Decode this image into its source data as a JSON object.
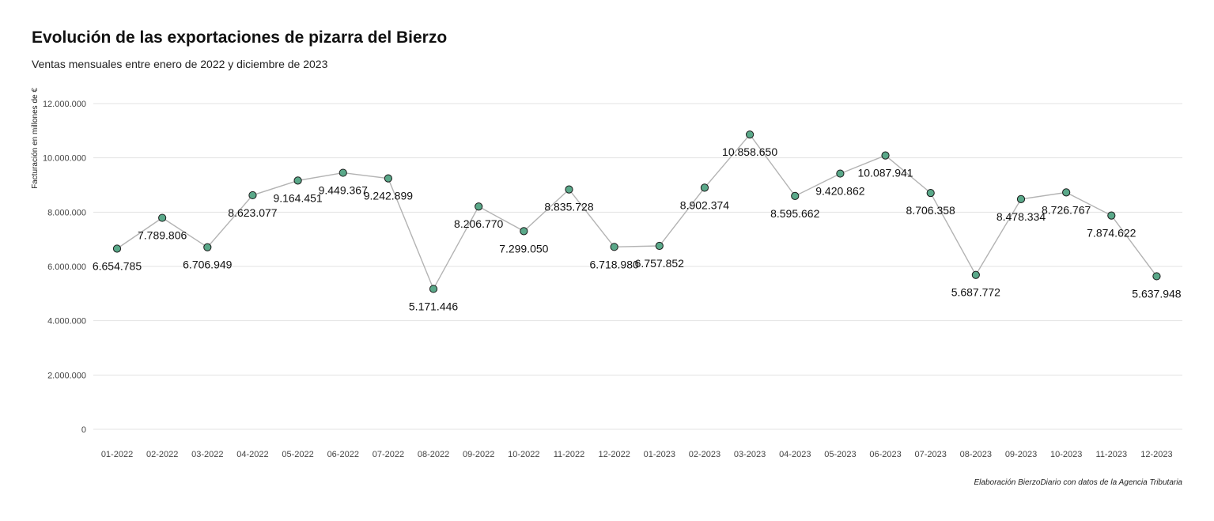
{
  "chart_data": {
    "type": "line",
    "title": "Evolución de las exportaciones de pizarra del Bierzo",
    "subtitle": "Ventas mensuales entre enero de 2022 y diciembre de 2023",
    "ylabel": "Facturación en millones de €",
    "xlabel": "",
    "caption": "Elaboración BierzoDiario con datos de la Agencia Tributaria",
    "ylim": [
      0,
      12000000
    ],
    "y_ticks": [
      0,
      2000000,
      4000000,
      6000000,
      8000000,
      10000000,
      12000000
    ],
    "y_tick_labels": [
      "0",
      "2.000.000",
      "4.000.000",
      "6.000.000",
      "8.000.000",
      "10.000.000",
      "12.000.000"
    ],
    "grid": true,
    "legend": "none",
    "colors": {
      "point_fill": "#5aa889",
      "line": "#b3b3b3"
    },
    "categories": [
      "01-2022",
      "02-2022",
      "03-2022",
      "04-2022",
      "05-2022",
      "06-2022",
      "07-2022",
      "08-2022",
      "09-2022",
      "10-2022",
      "11-2022",
      "12-2022",
      "01-2023",
      "02-2023",
      "03-2023",
      "04-2023",
      "05-2023",
      "06-2023",
      "07-2023",
      "08-2023",
      "09-2023",
      "10-2023",
      "11-2023",
      "12-2023"
    ],
    "values": [
      6654785,
      7789806,
      6706949,
      8623077,
      9164451,
      9449367,
      9242899,
      5171446,
      8206770,
      7299050,
      8835728,
      6718980,
      6757852,
      8902374,
      10858650,
      8595662,
      9420862,
      10087941,
      8706358,
      5687772,
      8478334,
      8726767,
      7874622,
      5637948
    ],
    "value_labels": [
      "6.654.785",
      "7.789.806",
      "6.706.949",
      "8.623.077",
      "9.164.451",
      "9.449.367",
      "9.242.899",
      "5.171.446",
      "8.206.770",
      "7.299.050",
      "8.835.728",
      "6.718.980",
      "6.757.852",
      "8.902.374",
      "10.858.650",
      "8.595.662",
      "9.420.862",
      "10.087.941",
      "8.706.358",
      "5.687.772",
      "8.478.334",
      "8.726.767",
      "7.874.622",
      "5.637.948"
    ]
  }
}
